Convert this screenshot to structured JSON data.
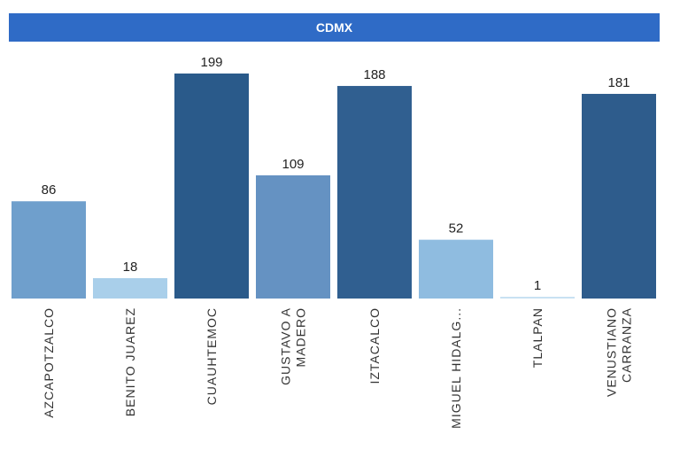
{
  "header": {
    "title": "CDMX"
  },
  "chart_data": {
    "type": "bar",
    "categories": [
      [
        "AZCAPOTZALCO"
      ],
      [
        "BENITO JUAREZ"
      ],
      [
        "CUAUHTEMOC"
      ],
      [
        "GUSTAVO A",
        "MADERO"
      ],
      [
        "IZTACALCO"
      ],
      [
        "MIGUEL HIDALG..."
      ],
      [
        "TLALPAN"
      ],
      [
        "VENUSTIANO",
        "CARRANZA"
      ]
    ],
    "values": [
      86,
      18,
      199,
      109,
      188,
      52,
      1,
      181
    ],
    "colors": [
      "#6f9fcc",
      "#a9cfea",
      "#2a5a8a",
      "#6592c2",
      "#305f90",
      "#8fbce0",
      "#c8e1f2",
      "#2e5c8c"
    ],
    "title": "CDMX",
    "ylim": [
      0,
      210
    ],
    "grid": false,
    "legend": "none"
  }
}
